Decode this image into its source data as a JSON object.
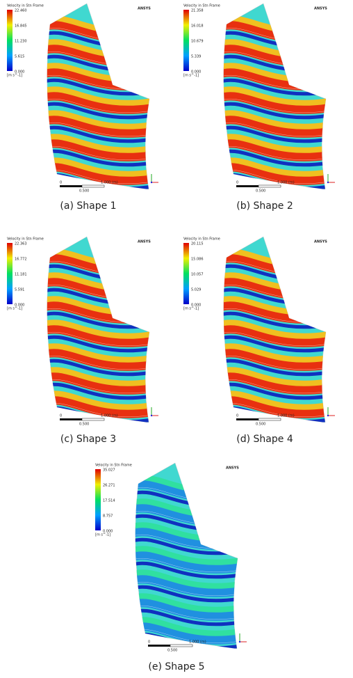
{
  "panels": [
    {
      "caption": "(a) Shape 1",
      "legend_title": "Velocity in Stn Frame",
      "legend_ticks": [
        "22.460",
        "16.845",
        "11.230",
        "5.615",
        "0.000"
      ],
      "unit": "[m s^-1]",
      "brand": "ANSYS",
      "scale_labels": [
        "0",
        "0.500",
        "1.000 (m)"
      ]
    },
    {
      "caption": "(b) Shape 2",
      "legend_title": "Velocity in Stn Frame",
      "legend_ticks": [
        "21.358",
        "16.018",
        "10.679",
        "5.339",
        "0.000"
      ],
      "unit": "[m s^-1]",
      "brand": "ANSYS",
      "scale_labels": [
        "0",
        "0.500",
        "1.000 (m)"
      ]
    },
    {
      "caption": "(c) Shape 3",
      "legend_title": "Velocity in Stn Frame",
      "legend_ticks": [
        "22.363",
        "16.772",
        "11.181",
        "5.591",
        "0.000"
      ],
      "unit": "[m s^-1]",
      "brand": "ANSYS",
      "scale_labels": [
        "0",
        "0.500",
        "1.000 (m)"
      ]
    },
    {
      "caption": "(d) Shape 4",
      "legend_title": "Velocity in Stn Frame",
      "legend_ticks": [
        "20.115",
        "15.086",
        "10.057",
        "5.029",
        "0.000"
      ],
      "unit": "[m s^-1]",
      "brand": "ANSYS",
      "scale_labels": [
        "0",
        "0.500",
        "1.000 (m)"
      ]
    },
    {
      "caption": "(e) Shape 5",
      "legend_title": "Velocity in Stn Frame",
      "legend_ticks": [
        "35.027",
        "26.271",
        "17.514",
        "8.757",
        "0.000"
      ],
      "unit": "[m s^-1]",
      "brand": "ANSYS",
      "scale_labels": [
        "0",
        "0.500",
        "1.000 (m)"
      ]
    }
  ]
}
